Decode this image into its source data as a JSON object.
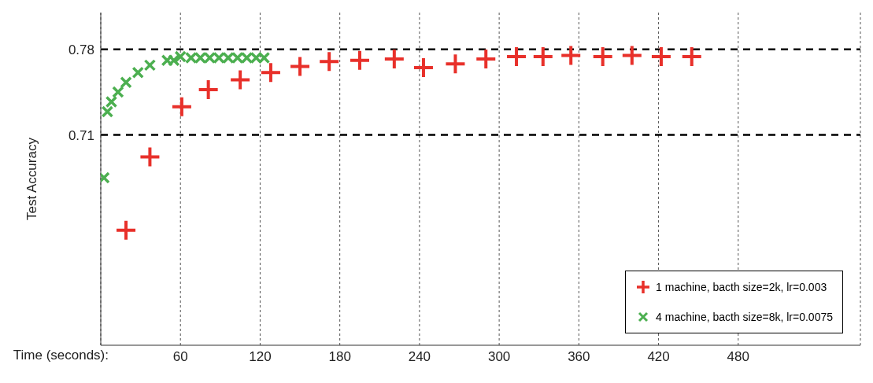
{
  "chart_data": {
    "type": "scatter",
    "xlabel": "Time (seconds):",
    "ylabel": "Test Accuracy",
    "xlim": [
      0,
      572
    ],
    "xticks": [
      60,
      120,
      180,
      240,
      300,
      360,
      420,
      480
    ],
    "ylim": [
      0.538,
      0.81
    ],
    "yticks": [
      0.71,
      0.78
    ],
    "grid": "x",
    "legend": "bottom right",
    "ref_lines": [
      {
        "axis": "y",
        "value": 0.71,
        "line_style": "dashed",
        "color": "#000000"
      },
      {
        "axis": "y",
        "value": 0.78,
        "line_style": "dashed",
        "color": "#000000"
      }
    ],
    "series": [
      {
        "name": "1 machine, bacth size=2k, lr=0.003",
        "color": "#e8302a",
        "marker": "cross",
        "x": [
          19,
          37,
          61,
          81,
          105,
          128,
          150,
          172,
          195,
          221,
          243,
          267,
          290,
          313,
          333,
          354,
          378,
          400,
          422,
          445
        ],
        "values": [
          0.632,
          0.692,
          0.733,
          0.747,
          0.755,
          0.761,
          0.766,
          0.77,
          0.771,
          0.772,
          0.765,
          0.768,
          0.772,
          0.774,
          0.774,
          0.775,
          0.774,
          0.775,
          0.774,
          0.774
        ]
      },
      {
        "name": "4 machine, bacth size=8k, lr=0.0075",
        "color": "#4caf50",
        "marker": "x",
        "x": [
          2.4,
          5,
          8,
          13,
          19,
          28,
          37,
          50,
          55,
          60,
          68,
          75,
          82,
          89,
          96,
          103,
          110,
          117,
          123
        ],
        "values": [
          0.675,
          0.729,
          0.737,
          0.745,
          0.753,
          0.761,
          0.767,
          0.771,
          0.771,
          0.774,
          0.773,
          0.773,
          0.773,
          0.773,
          0.773,
          0.773,
          0.773,
          0.773,
          0.773
        ]
      }
    ]
  }
}
